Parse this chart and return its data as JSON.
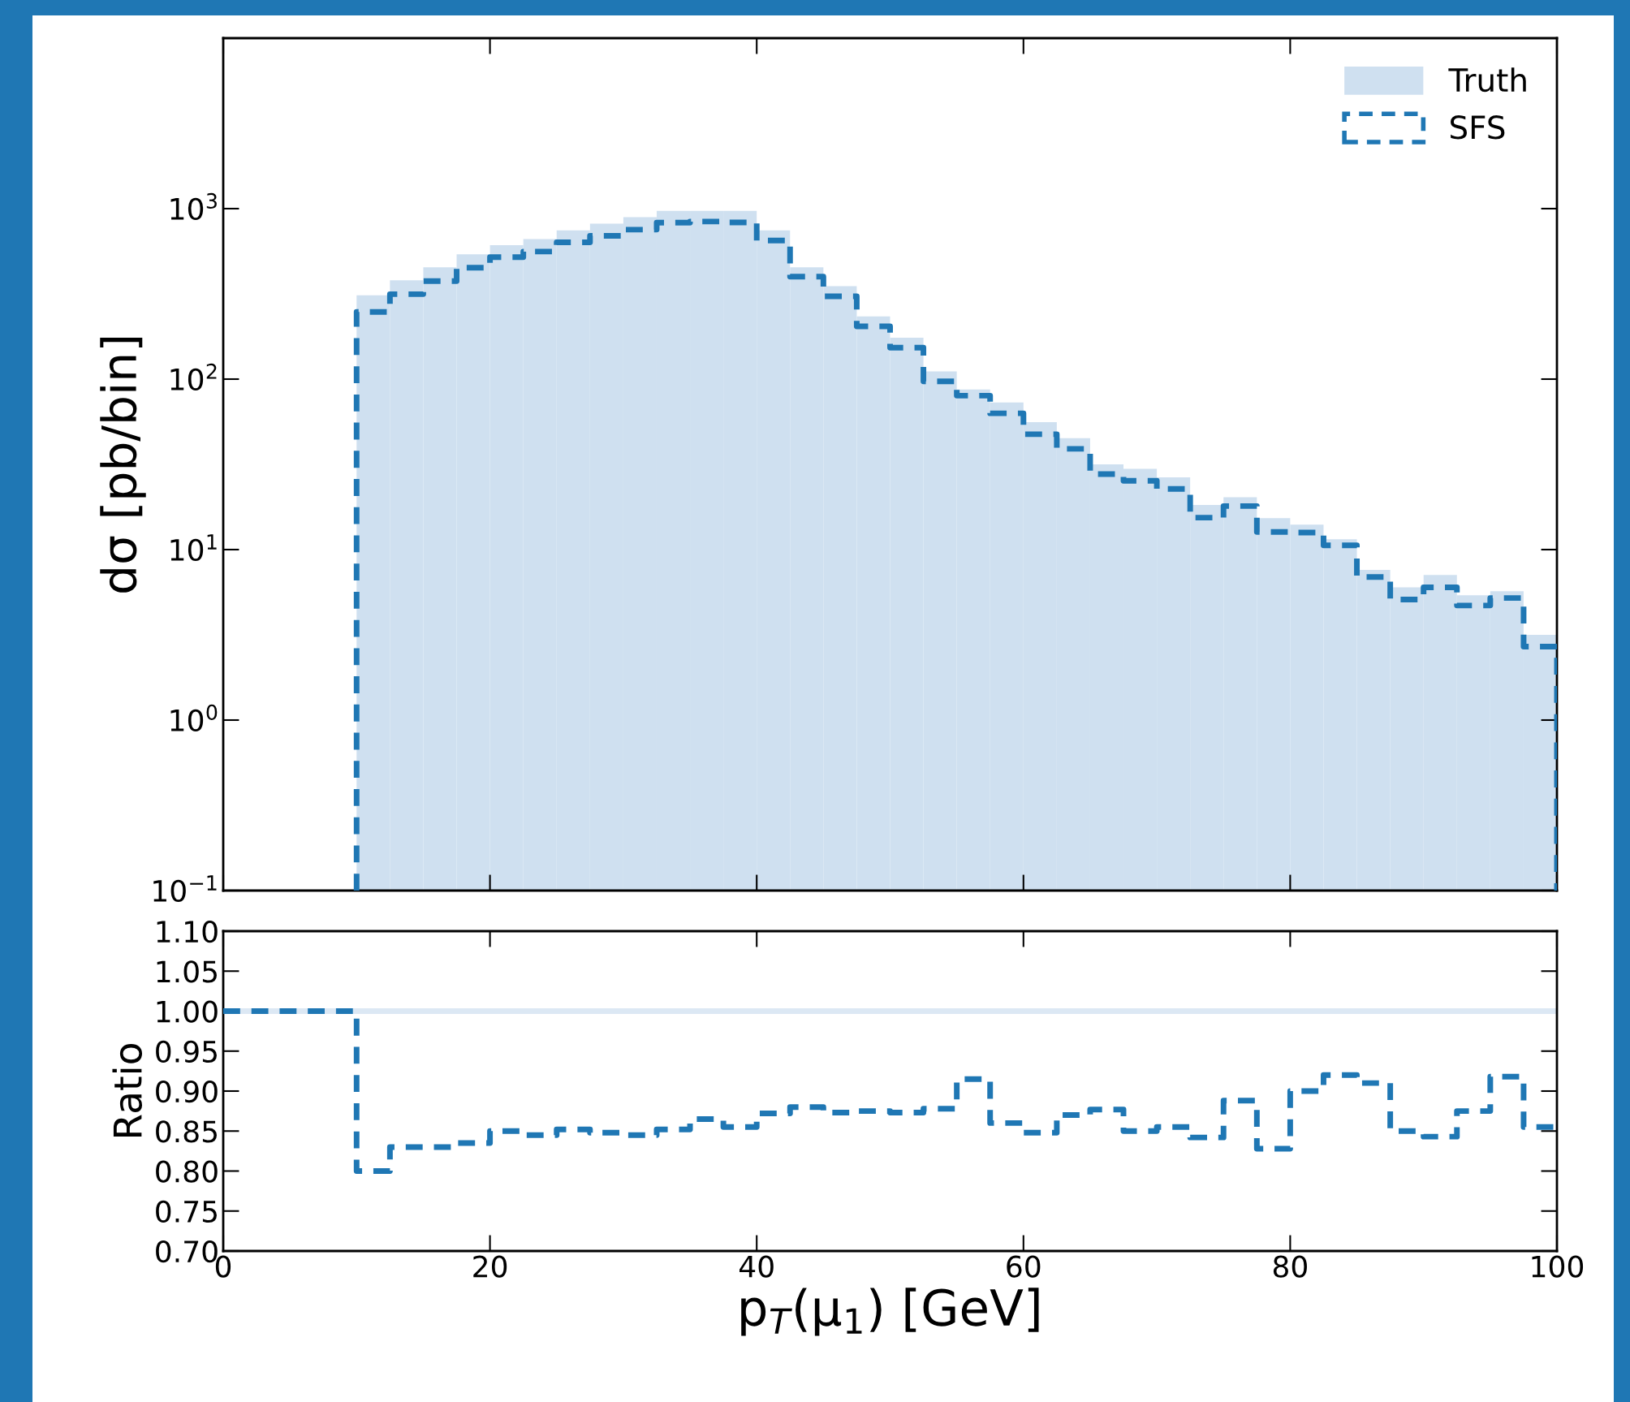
{
  "chart_data": [
    {
      "type": "histogram",
      "ylabel": "dσ [pb/bin]",
      "bins": [
        10,
        12.5,
        15,
        17.5,
        20,
        22.5,
        25,
        27.5,
        30,
        32.5,
        35,
        37.5,
        40,
        42.5,
        45,
        47.5,
        50,
        52.5,
        55,
        57.5,
        60,
        62.5,
        65,
        67.5,
        70,
        72.5,
        75,
        77.5,
        80,
        82.5,
        85,
        87.5,
        90,
        92.5,
        95,
        97.5,
        100
      ],
      "series": [
        {
          "name": "Truth",
          "color": "#cfe0f0",
          "values": [
            310,
            380,
            453,
            539,
            611,
            663,
            745,
            817,
            891,
            971,
            971,
            971,
            745,
            453,
            351,
            233,
            175,
            111,
            87,
            73,
            56,
            45,
            31.6,
            29.8,
            26.5,
            18.3,
            20.3,
            15.3,
            14.0,
            11.5,
            7.6,
            6.0,
            7.1,
            5.4,
            5.7,
            3.16
          ]
        },
        {
          "name": "SFS",
          "type": "step",
          "line_style": "dashed",
          "color": "#1f77b4",
          "x": [
            10,
            10,
            12.5,
            15,
            17.5,
            20,
            22.5,
            25,
            27.5,
            30,
            32.5,
            35,
            37.5,
            40,
            42.5,
            45,
            47.5,
            50,
            52.5,
            55,
            57.5,
            60,
            62.5,
            65,
            67.5,
            70,
            72.5,
            75,
            77.5,
            80,
            82.5,
            85,
            87.5,
            90,
            92.5,
            95,
            97.5,
            100,
            100
          ],
          "values": [
            0.1,
            248,
            315,
            376,
            450,
            519,
            560,
            635,
            693,
            753,
            827,
            840,
            830,
            650,
            399,
            306,
            204,
            153,
            97,
            80,
            63,
            47.5,
            39,
            27.7,
            25.3,
            22.7,
            15.4,
            18.0,
            12.7,
            12.6,
            10.6,
            6.9,
            5.1,
            6.0,
            4.7,
            5.2,
            2.7,
            2.7,
            0.1
          ]
        }
      ],
      "log": "y",
      "xlim": [
        0,
        100
      ],
      "ylim": [
        0.1,
        10000
      ],
      "yticks": [
        {
          "value": 0.1,
          "label": "10$^{−1}$"
        },
        {
          "value": 1,
          "label": "10$^{0}$"
        },
        {
          "value": 10,
          "label": "10$^{1}$"
        },
        {
          "value": 100,
          "label": "10$^{2}$"
        },
        {
          "value": 1000,
          "label": "10$^{3}$"
        }
      ],
      "tick_labels": "y",
      "legend": "top right",
      "grid": false
    },
    {
      "type": "step",
      "xlabel": "p$_{T}$(μ$_{1}$) [GeV]",
      "ylabel": "Ratio",
      "series": [
        {
          "line_style": "dashed",
          "color": "#1f77b4",
          "x": [
            0,
            2.5,
            5,
            7.5,
            10,
            12.5,
            15,
            17.5,
            20,
            22.5,
            25,
            27.5,
            30,
            32.5,
            35,
            37.5,
            40,
            42.5,
            45,
            47.5,
            50,
            52.5,
            55,
            57.5,
            60,
            62.5,
            65,
            67.5,
            70,
            72.5,
            75,
            77.5,
            80,
            82.5,
            85,
            87.5,
            90,
            92.5,
            95,
            97.5,
            100
          ],
          "values": [
            1.0,
            1.0,
            1.0,
            1.0,
            0.8,
            0.83,
            0.83,
            0.835,
            0.85,
            0.845,
            0.852,
            0.848,
            0.845,
            0.852,
            0.865,
            0.855,
            0.872,
            0.88,
            0.873,
            0.875,
            0.873,
            0.878,
            0.915,
            0.86,
            0.848,
            0.87,
            0.877,
            0.85,
            0.855,
            0.842,
            0.888,
            0.828,
            0.9,
            0.92,
            0.91,
            0.85,
            0.843,
            0.875,
            0.918,
            0.855,
            0.855
          ]
        }
      ],
      "ref_lines": [
        {
          "axis": "y",
          "value": 1.0,
          "color": "#dce8f4"
        }
      ],
      "xlim": [
        0,
        100
      ],
      "ylim": [
        0.7,
        1.1
      ],
      "xticks": [
        0,
        20,
        40,
        60,
        80,
        100
      ],
      "yticks": [
        {
          "value": 0.7,
          "label": "0.70"
        },
        {
          "value": 0.75,
          "label": "0.75"
        },
        {
          "value": 0.8,
          "label": "0.80"
        },
        {
          "value": 0.85,
          "label": "0.85"
        },
        {
          "value": 0.9,
          "label": "0.90"
        },
        {
          "value": 0.95,
          "label": "0.95"
        },
        {
          "value": 1.0,
          "label": "1.00"
        },
        {
          "value": 1.05,
          "label": "1.05"
        },
        {
          "value": 1.1,
          "label": "1.10"
        }
      ],
      "grid": false
    }
  ]
}
